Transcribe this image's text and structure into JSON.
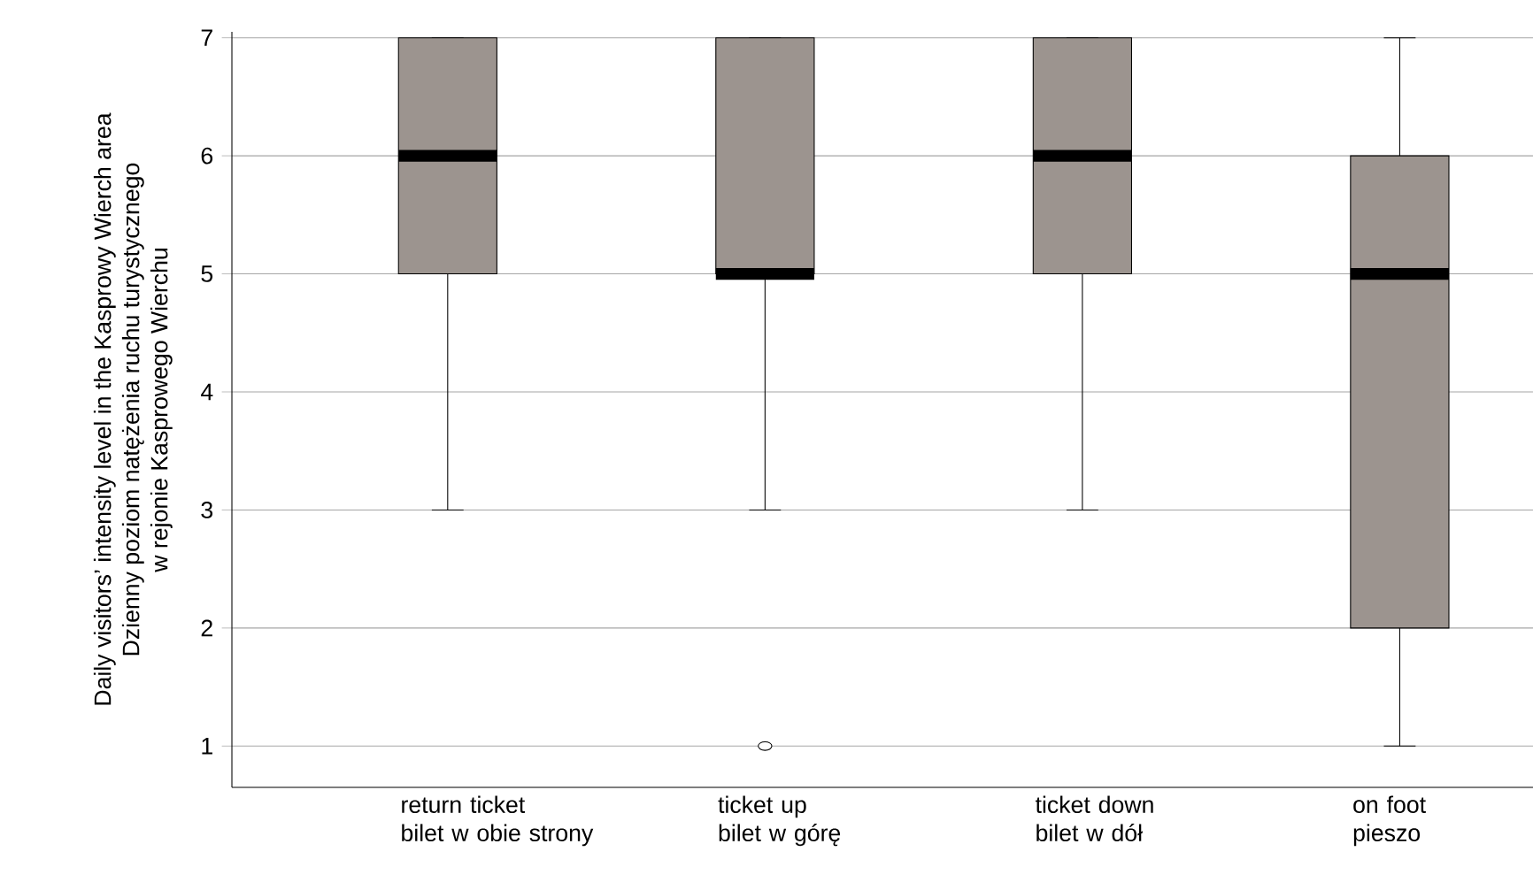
{
  "chart_data": {
    "type": "box",
    "ylabel": "Daily visitors’ intensity level in the Kasprowy Wierch area\nDzienny poziom natężenia ruchu turystycznego\nw rejonie Kasprowego Wierchu",
    "categories": [
      "return ticket\nbilet w obie strony",
      "ticket up\nbilet w górę",
      "ticket down\nbilet w dół",
      "on foot\npieszo"
    ],
    "boxes": [
      {
        "low": 3,
        "q1": 5,
        "median": 6,
        "q3": 7,
        "high": 7
      },
      {
        "low": 3,
        "q1": 5,
        "median": 5,
        "q3": 7,
        "high": 7,
        "outliers": [
          1
        ]
      },
      {
        "low": 3,
        "q1": 5,
        "median": 6,
        "q3": 7,
        "high": 7
      },
      {
        "low": 1,
        "q1": 2,
        "median": 5,
        "q3": 6,
        "high": 7
      }
    ],
    "color": "#9c948f",
    "ylim": [
      0.65,
      7.05
    ],
    "yticks": [
      1,
      2,
      3,
      4,
      5,
      6,
      7
    ],
    "grid": "y"
  }
}
